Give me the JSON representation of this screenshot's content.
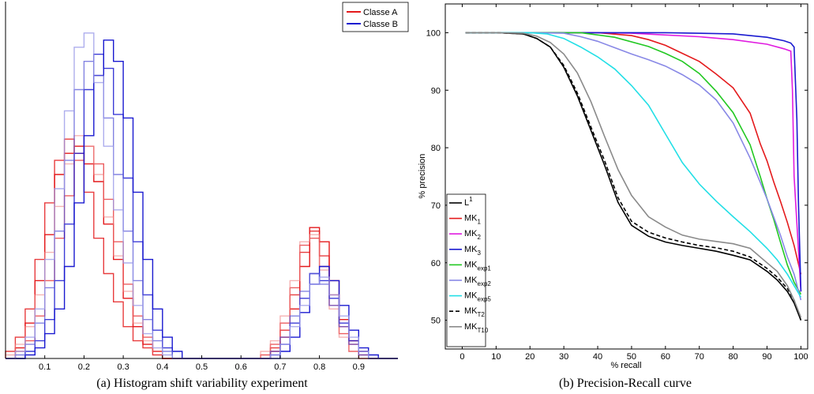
{
  "chart_data": [
    {
      "type": "line",
      "subtype": "step-histogram",
      "caption": "(a)  Histogram shift variability experiment",
      "xticks": [
        "0.1",
        "0.2",
        "0.3",
        "0.4",
        "0.5",
        "0.6",
        "0.7",
        "0.8",
        "0.9"
      ],
      "xlim": [
        0,
        1
      ],
      "ylim": [
        0,
        1
      ],
      "legend": [
        {
          "name": "Classe A",
          "color": "#e41a1c"
        },
        {
          "name": "Classe B",
          "color": "#1a1ad0"
        }
      ],
      "legend_position": "top-right",
      "series": [
        {
          "name": "Classe A",
          "color": "#e41a1c",
          "opacity": 1.0,
          "values": [
            0,
            0.03,
            0.1,
            0.22,
            0.35,
            0.52,
            0.58,
            0.6,
            0.55,
            0.5,
            0.38,
            0.28,
            0.17,
            0.09,
            0.04,
            0.02,
            0,
            0,
            0,
            0,
            0,
            0,
            0,
            0,
            0,
            0,
            0,
            0.02,
            0.06,
            0.14,
            0.26,
            0.37,
            0.33,
            0.22,
            0.11,
            0.05,
            0.02,
            0,
            0,
            0
          ]
        },
        {
          "name": "Classe A",
          "color": "#e41a1c",
          "opacity": 0.85,
          "values": [
            0.02,
            0.06,
            0.14,
            0.28,
            0.44,
            0.56,
            0.62,
            0.58,
            0.47,
            0.34,
            0.24,
            0.16,
            0.09,
            0.05,
            0.03,
            0.01,
            0,
            0,
            0,
            0,
            0,
            0,
            0,
            0,
            0,
            0,
            0,
            0.03,
            0.08,
            0.18,
            0.3,
            0.36,
            0.29,
            0.18,
            0.09,
            0.04,
            0.01,
            0,
            0,
            0
          ]
        },
        {
          "name": "Classe A",
          "color": "#e41a1c",
          "opacity": 0.7,
          "values": [
            0,
            0.02,
            0.05,
            0.12,
            0.22,
            0.34,
            0.46,
            0.56,
            0.6,
            0.55,
            0.45,
            0.33,
            0.21,
            0.12,
            0.06,
            0.02,
            0,
            0,
            0,
            0,
            0,
            0,
            0,
            0,
            0,
            0,
            0.01,
            0.04,
            0.1,
            0.2,
            0.32,
            0.34,
            0.26,
            0.15,
            0.07,
            0.02,
            0,
            0,
            0,
            0
          ]
        },
        {
          "name": "Classe A",
          "color": "#f08080",
          "opacity": 0.6,
          "values": [
            0.01,
            0.04,
            0.09,
            0.18,
            0.3,
            0.43,
            0.55,
            0.63,
            0.6,
            0.52,
            0.4,
            0.29,
            0.19,
            0.1,
            0.05,
            0.02,
            0,
            0,
            0,
            0,
            0,
            0,
            0,
            0,
            0,
            0,
            0.02,
            0.05,
            0.12,
            0.22,
            0.33,
            0.35,
            0.25,
            0.14,
            0.06,
            0.02,
            0,
            0,
            0,
            0
          ]
        },
        {
          "name": "Classe B",
          "color": "#1a1ad0",
          "opacity": 1.0,
          "values": [
            0,
            0,
            0.01,
            0.03,
            0.07,
            0.14,
            0.26,
            0.44,
            0.63,
            0.8,
            0.9,
            0.84,
            0.68,
            0.47,
            0.28,
            0.14,
            0.06,
            0.02,
            0,
            0,
            0,
            0,
            0,
            0,
            0,
            0,
            0,
            0,
            0.02,
            0.06,
            0.13,
            0.21,
            0.26,
            0.22,
            0.15,
            0.08,
            0.03,
            0.01,
            0,
            0
          ]
        },
        {
          "name": "Classe B",
          "color": "#1a1ad0",
          "opacity": 0.85,
          "values": [
            0,
            0,
            0.02,
            0.05,
            0.11,
            0.22,
            0.38,
            0.58,
            0.76,
            0.86,
            0.82,
            0.69,
            0.51,
            0.33,
            0.18,
            0.08,
            0.03,
            0,
            0,
            0,
            0,
            0,
            0,
            0,
            0,
            0,
            0,
            0.01,
            0.04,
            0.1,
            0.17,
            0.24,
            0.22,
            0.17,
            0.1,
            0.05,
            0.02,
            0,
            0,
            0
          ]
        },
        {
          "name": "Classe B",
          "color": "#5a5ad8",
          "opacity": 0.75,
          "values": [
            0,
            0.01,
            0.04,
            0.1,
            0.2,
            0.36,
            0.56,
            0.76,
            0.84,
            0.8,
            0.68,
            0.52,
            0.36,
            0.22,
            0.11,
            0.05,
            0.02,
            0,
            0,
            0,
            0,
            0,
            0,
            0,
            0,
            0,
            0,
            0.02,
            0.06,
            0.12,
            0.19,
            0.24,
            0.21,
            0.15,
            0.09,
            0.04,
            0.01,
            0,
            0,
            0
          ]
        },
        {
          "name": "Classe B",
          "color": "#9a9ae8",
          "opacity": 0.8,
          "values": [
            0,
            0.02,
            0.06,
            0.14,
            0.28,
            0.48,
            0.7,
            0.88,
            0.92,
            0.78,
            0.6,
            0.42,
            0.27,
            0.15,
            0.07,
            0.03,
            0.01,
            0,
            0,
            0,
            0,
            0,
            0,
            0,
            0,
            0,
            0,
            0.01,
            0.04,
            0.09,
            0.15,
            0.21,
            0.23,
            0.18,
            0.12,
            0.06,
            0.02,
            0,
            0,
            0
          ]
        }
      ]
    },
    {
      "type": "line",
      "caption": "(b)  Precision-Recall curve",
      "xlabel": "% recall",
      "ylabel": "% precision",
      "xlim": [
        -5,
        102
      ],
      "ylim": [
        45,
        105
      ],
      "xticks": [
        0,
        10,
        20,
        30,
        40,
        50,
        60,
        70,
        80,
        90,
        100
      ],
      "yticks": [
        50,
        60,
        70,
        80,
        90,
        100
      ],
      "legend_position": "bottom-left",
      "series": [
        {
          "name": "L",
          "sup": "1",
          "color": "#000000",
          "dash": "",
          "x": [
            1,
            10,
            18,
            22,
            26,
            30,
            34,
            38,
            42,
            46,
            50,
            55,
            60,
            65,
            70,
            75,
            80,
            85,
            90,
            93,
            96,
            98,
            100
          ],
          "y": [
            100,
            100,
            99.8,
            99,
            97.5,
            94,
            89,
            83,
            77,
            70.5,
            66.5,
            64.6,
            63.6,
            63,
            62.5,
            62,
            61.3,
            60.5,
            58.5,
            57,
            55,
            53,
            50
          ]
        },
        {
          "name": "MK",
          "sub": "1",
          "color": "#e41a1c",
          "dash": "",
          "x": [
            1,
            20,
            40,
            50,
            55,
            60,
            65,
            70,
            75,
            80,
            85,
            88,
            90,
            92,
            94,
            96,
            98,
            100
          ],
          "y": [
            100,
            100,
            100,
            99.5,
            98.8,
            97.8,
            96.4,
            95,
            92.8,
            90.4,
            86,
            80.7,
            77.7,
            74,
            70.6,
            67,
            63,
            58
          ]
        },
        {
          "name": "MK",
          "sub": "2",
          "color": "#e01be0",
          "dash": "",
          "x": [
            1,
            20,
            40,
            50,
            60,
            70,
            80,
            90,
            95,
            97,
            97.5,
            98,
            100
          ],
          "y": [
            100,
            100,
            100,
            99.9,
            99.6,
            99.3,
            98.8,
            98,
            97.2,
            96.8,
            90,
            75,
            55
          ]
        },
        {
          "name": "MK",
          "sub": "3",
          "color": "#1a1ad0",
          "dash": "",
          "x": [
            1,
            20,
            40,
            60,
            80,
            90,
            95,
            97,
            98,
            98.8,
            99.3,
            100
          ],
          "y": [
            100,
            100,
            100,
            100,
            99.8,
            99.2,
            98.6,
            98.2,
            97.5,
            85,
            70,
            55
          ]
        },
        {
          "name": "MK",
          "sub": "exp1",
          "color": "#22c822",
          "dash": "",
          "x": [
            1,
            20,
            35,
            45,
            55,
            60,
            65,
            70,
            75,
            80,
            85,
            88,
            90,
            92,
            94,
            96,
            98,
            100
          ],
          "y": [
            100,
            100,
            100,
            99.2,
            97.6,
            96.4,
            95,
            92.9,
            89.8,
            86.1,
            80.5,
            75,
            71.1,
            67.5,
            63.5,
            59.6,
            56.6,
            54.5
          ]
        },
        {
          "name": "MK",
          "sub": "exp2",
          "color": "#8888e6",
          "dash": "",
          "x": [
            1,
            20,
            30,
            35,
            40,
            45,
            50,
            55,
            60,
            65,
            70,
            75,
            80,
            85,
            88,
            90,
            92,
            94,
            96,
            98,
            100
          ],
          "y": [
            100,
            100,
            99.9,
            99.3,
            98.5,
            97.4,
            96.3,
            95.3,
            94.2,
            92.7,
            90.9,
            88.3,
            84.3,
            78.2,
            74,
            71.1,
            67.9,
            64.7,
            61,
            58,
            53.5
          ]
        },
        {
          "name": "MK",
          "sub": "exp5",
          "color": "#22dfe6",
          "dash": "",
          "x": [
            1,
            20,
            25,
            30,
            35,
            40,
            45,
            50,
            55,
            60,
            65,
            70,
            75,
            80,
            85,
            90,
            93,
            96,
            98,
            100
          ],
          "y": [
            100,
            100,
            99.8,
            99,
            97.5,
            95.8,
            93.7,
            90.8,
            87.4,
            82.4,
            77.4,
            73.7,
            70.7,
            68,
            65.4,
            62.5,
            60.5,
            58,
            56,
            54
          ]
        },
        {
          "name": "MK",
          "sub": "T2",
          "color": "#000000",
          "dash": "5,3",
          "x": [
            1,
            10,
            18,
            22,
            26,
            30,
            34,
            38,
            42,
            46,
            50,
            55,
            60,
            65,
            70,
            75,
            80,
            85,
            90,
            93,
            96,
            98,
            100
          ],
          "y": [
            100,
            100,
            99.8,
            99,
            97.5,
            94.3,
            89.5,
            83.6,
            77.8,
            71.3,
            67.2,
            65.3,
            64.3,
            63.6,
            63,
            62.6,
            62,
            61,
            59,
            57.5,
            55.5,
            53.5,
            50
          ]
        },
        {
          "name": "MK",
          "sub": "T10",
          "color": "#8a8a8a",
          "dash": "",
          "x": [
            1,
            10,
            18,
            22,
            26,
            30,
            34,
            38,
            42,
            46,
            50,
            55,
            60,
            65,
            70,
            75,
            80,
            85,
            90,
            93,
            96,
            98,
            100
          ],
          "y": [
            100,
            100,
            99.9,
            99.4,
            98.3,
            96.3,
            93,
            88,
            82,
            76.2,
            71.7,
            68,
            66.2,
            64.8,
            64.1,
            63.7,
            63.3,
            62.5,
            60,
            58.5,
            56,
            53.5,
            50.5
          ]
        }
      ]
    }
  ]
}
